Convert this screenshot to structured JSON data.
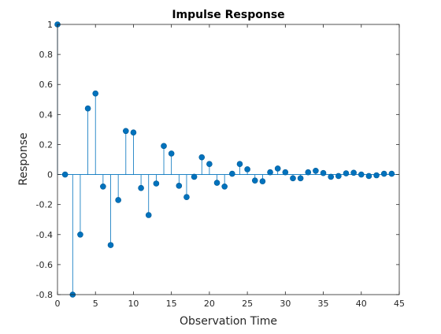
{
  "chart_data": {
    "type": "stem",
    "title": "Impulse Response",
    "xlabel": "Observation Time",
    "ylabel": "Response",
    "xlim": [
      0,
      45
    ],
    "ylim": [
      -0.8,
      1
    ],
    "xticks": [
      0,
      5,
      10,
      15,
      20,
      25,
      30,
      35,
      40,
      45
    ],
    "yticks": [
      -0.8,
      -0.6,
      -0.4,
      -0.2,
      0,
      0.2,
      0.4,
      0.6,
      0.8,
      1
    ],
    "xtick_labels": [
      "0",
      "5",
      "10",
      "15",
      "20",
      "25",
      "30",
      "35",
      "40",
      "45"
    ],
    "ytick_labels": [
      "-0.8",
      "-0.6",
      "-0.4",
      "-0.2",
      "0",
      "0.2",
      "0.4",
      "0.6",
      "0.8",
      "1"
    ],
    "grid": false,
    "color": "#0072BD",
    "series": [
      {
        "x": [
          0,
          1,
          2,
          3,
          4,
          5,
          6,
          7,
          8,
          9,
          10,
          11,
          12,
          13,
          14,
          15,
          16,
          17,
          18,
          19,
          20,
          21,
          22,
          23,
          24,
          25,
          26,
          27,
          28,
          29,
          30,
          31,
          32,
          33,
          34,
          35,
          36,
          37,
          38,
          39,
          40,
          41,
          42,
          43,
          44
        ],
        "values": [
          1,
          0,
          -0.8,
          -0.4,
          0.44,
          0.54,
          -0.08,
          -0.47,
          -0.17,
          0.29,
          0.28,
          -0.09,
          -0.27,
          -0.06,
          0.19,
          0.14,
          -0.075,
          -0.15,
          -0.015,
          0.115,
          0.07,
          -0.055,
          -0.08,
          0.005,
          0.07,
          0.035,
          -0.04,
          -0.045,
          0.015,
          0.04,
          0.015,
          -0.025,
          -0.025,
          0.015,
          0.025,
          0.01,
          -0.015,
          -0.01,
          0.008,
          0.012,
          0,
          -0.01,
          -0.005,
          0.005,
          0.005
        ]
      }
    ]
  }
}
